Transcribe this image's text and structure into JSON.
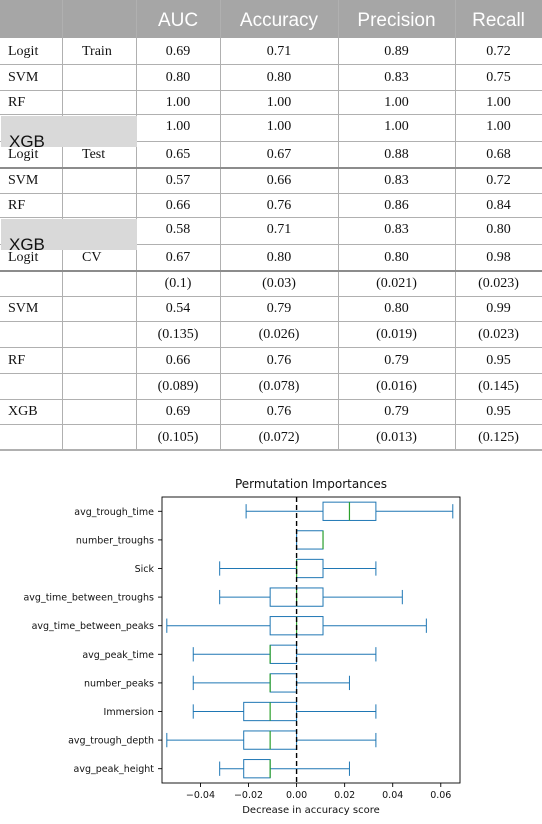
{
  "table": {
    "columns": [
      "",
      "",
      "AUC",
      "Accuracy",
      "Precision",
      "Recall"
    ],
    "rows": [
      [
        "Logit",
        "Train",
        "0.69",
        "0.71",
        "0.89",
        "0.72"
      ],
      [
        "SVM",
        "",
        "0.80",
        "0.80",
        "0.83",
        "0.75"
      ],
      [
        "RF",
        "",
        "1.00",
        "1.00",
        "1.00",
        "1.00"
      ],
      [
        "XGB",
        "",
        "1.00",
        "1.00",
        "1.00",
        "1.00"
      ],
      [
        "Logit",
        "Test",
        "0.65",
        "0.67",
        "0.88",
        "0.68"
      ],
      [
        "SVM",
        "",
        "0.57",
        "0.66",
        "0.83",
        "0.72"
      ],
      [
        "RF",
        "",
        "0.66",
        "0.76",
        "0.86",
        "0.84"
      ],
      [
        "XGB",
        "",
        "0.58",
        "0.71",
        "0.83",
        "0.80"
      ],
      [
        "Logit",
        "CV",
        "0.67",
        "0.80",
        "0.80",
        "0.98"
      ],
      [
        "",
        "",
        "(0.1)",
        "(0.03)",
        "(0.021)",
        "(0.023)"
      ],
      [
        "SVM",
        "",
        "0.54",
        "0.79",
        "0.80",
        "0.99"
      ],
      [
        "",
        "",
        "(0.135)",
        "(0.026)",
        "(0.019)",
        "(0.023)"
      ],
      [
        "RF",
        "",
        "0.66",
        "0.76",
        "0.79",
        "0.95"
      ],
      [
        "",
        "",
        "(0.089)",
        "(0.078)",
        "(0.016)",
        "(0.145)"
      ],
      [
        "XGB",
        "",
        "0.69",
        "0.76",
        "0.79",
        "0.95"
      ],
      [
        "",
        "",
        "(0.105)",
        "(0.072)",
        "(0.013)",
        "(0.125)"
      ]
    ],
    "colors": {
      "header_bg": "#a6a6a6",
      "header_text": "#ffffff",
      "highlight_bg": "#d9d9d9"
    }
  },
  "chart_data": {
    "type": "boxplot",
    "title": "Permutation Importances",
    "xlabel": "Decrease in accuracy score",
    "ylabel": "",
    "xlim": [
      -0.056,
      0.068
    ],
    "xticks": [
      -0.04,
      -0.02,
      0.0,
      0.02,
      0.04,
      0.06
    ],
    "xtick_labels": [
      "−0.04",
      "−0.02",
      "0.00",
      "0.02",
      "0.04",
      "0.06"
    ],
    "reference_line": {
      "x": 0.0,
      "style": "dashed",
      "color": "#000000"
    },
    "box_color": "#1f77b4",
    "median_color": "#2ca02c",
    "features": [
      {
        "name": "avg_trough_time",
        "whislo": -0.021,
        "q1": 0.011,
        "med": 0.022,
        "q3": 0.033,
        "whishi": 0.065
      },
      {
        "name": "number_troughs",
        "whislo": 0.0,
        "q1": 0.0,
        "med": 0.011,
        "q3": 0.011,
        "whishi": 0.011
      },
      {
        "name": "Sick",
        "whislo": -0.032,
        "q1": 0.0,
        "med": 0.0,
        "q3": 0.011,
        "whishi": 0.033
      },
      {
        "name": "avg_time_between_troughs",
        "whislo": -0.032,
        "q1": -0.011,
        "med": 0.0,
        "q3": 0.011,
        "whishi": 0.044
      },
      {
        "name": "avg_time_between_peaks",
        "whislo": -0.054,
        "q1": -0.011,
        "med": 0.0,
        "q3": 0.011,
        "whishi": 0.054
      },
      {
        "name": "avg_peak_time",
        "whislo": -0.043,
        "q1": -0.011,
        "med": -0.011,
        "q3": 0.0,
        "whishi": 0.033
      },
      {
        "name": "number_peaks",
        "whislo": -0.043,
        "q1": -0.011,
        "med": -0.011,
        "q3": 0.0,
        "whishi": 0.022
      },
      {
        "name": "Immersion",
        "whislo": -0.043,
        "q1": -0.022,
        "med": -0.011,
        "q3": 0.0,
        "whishi": 0.033
      },
      {
        "name": "avg_trough_depth",
        "whislo": -0.054,
        "q1": -0.022,
        "med": -0.011,
        "q3": 0.0,
        "whishi": 0.033
      },
      {
        "name": "avg_peak_height",
        "whislo": -0.032,
        "q1": -0.022,
        "med": -0.011,
        "q3": -0.011,
        "whishi": 0.022
      }
    ]
  }
}
